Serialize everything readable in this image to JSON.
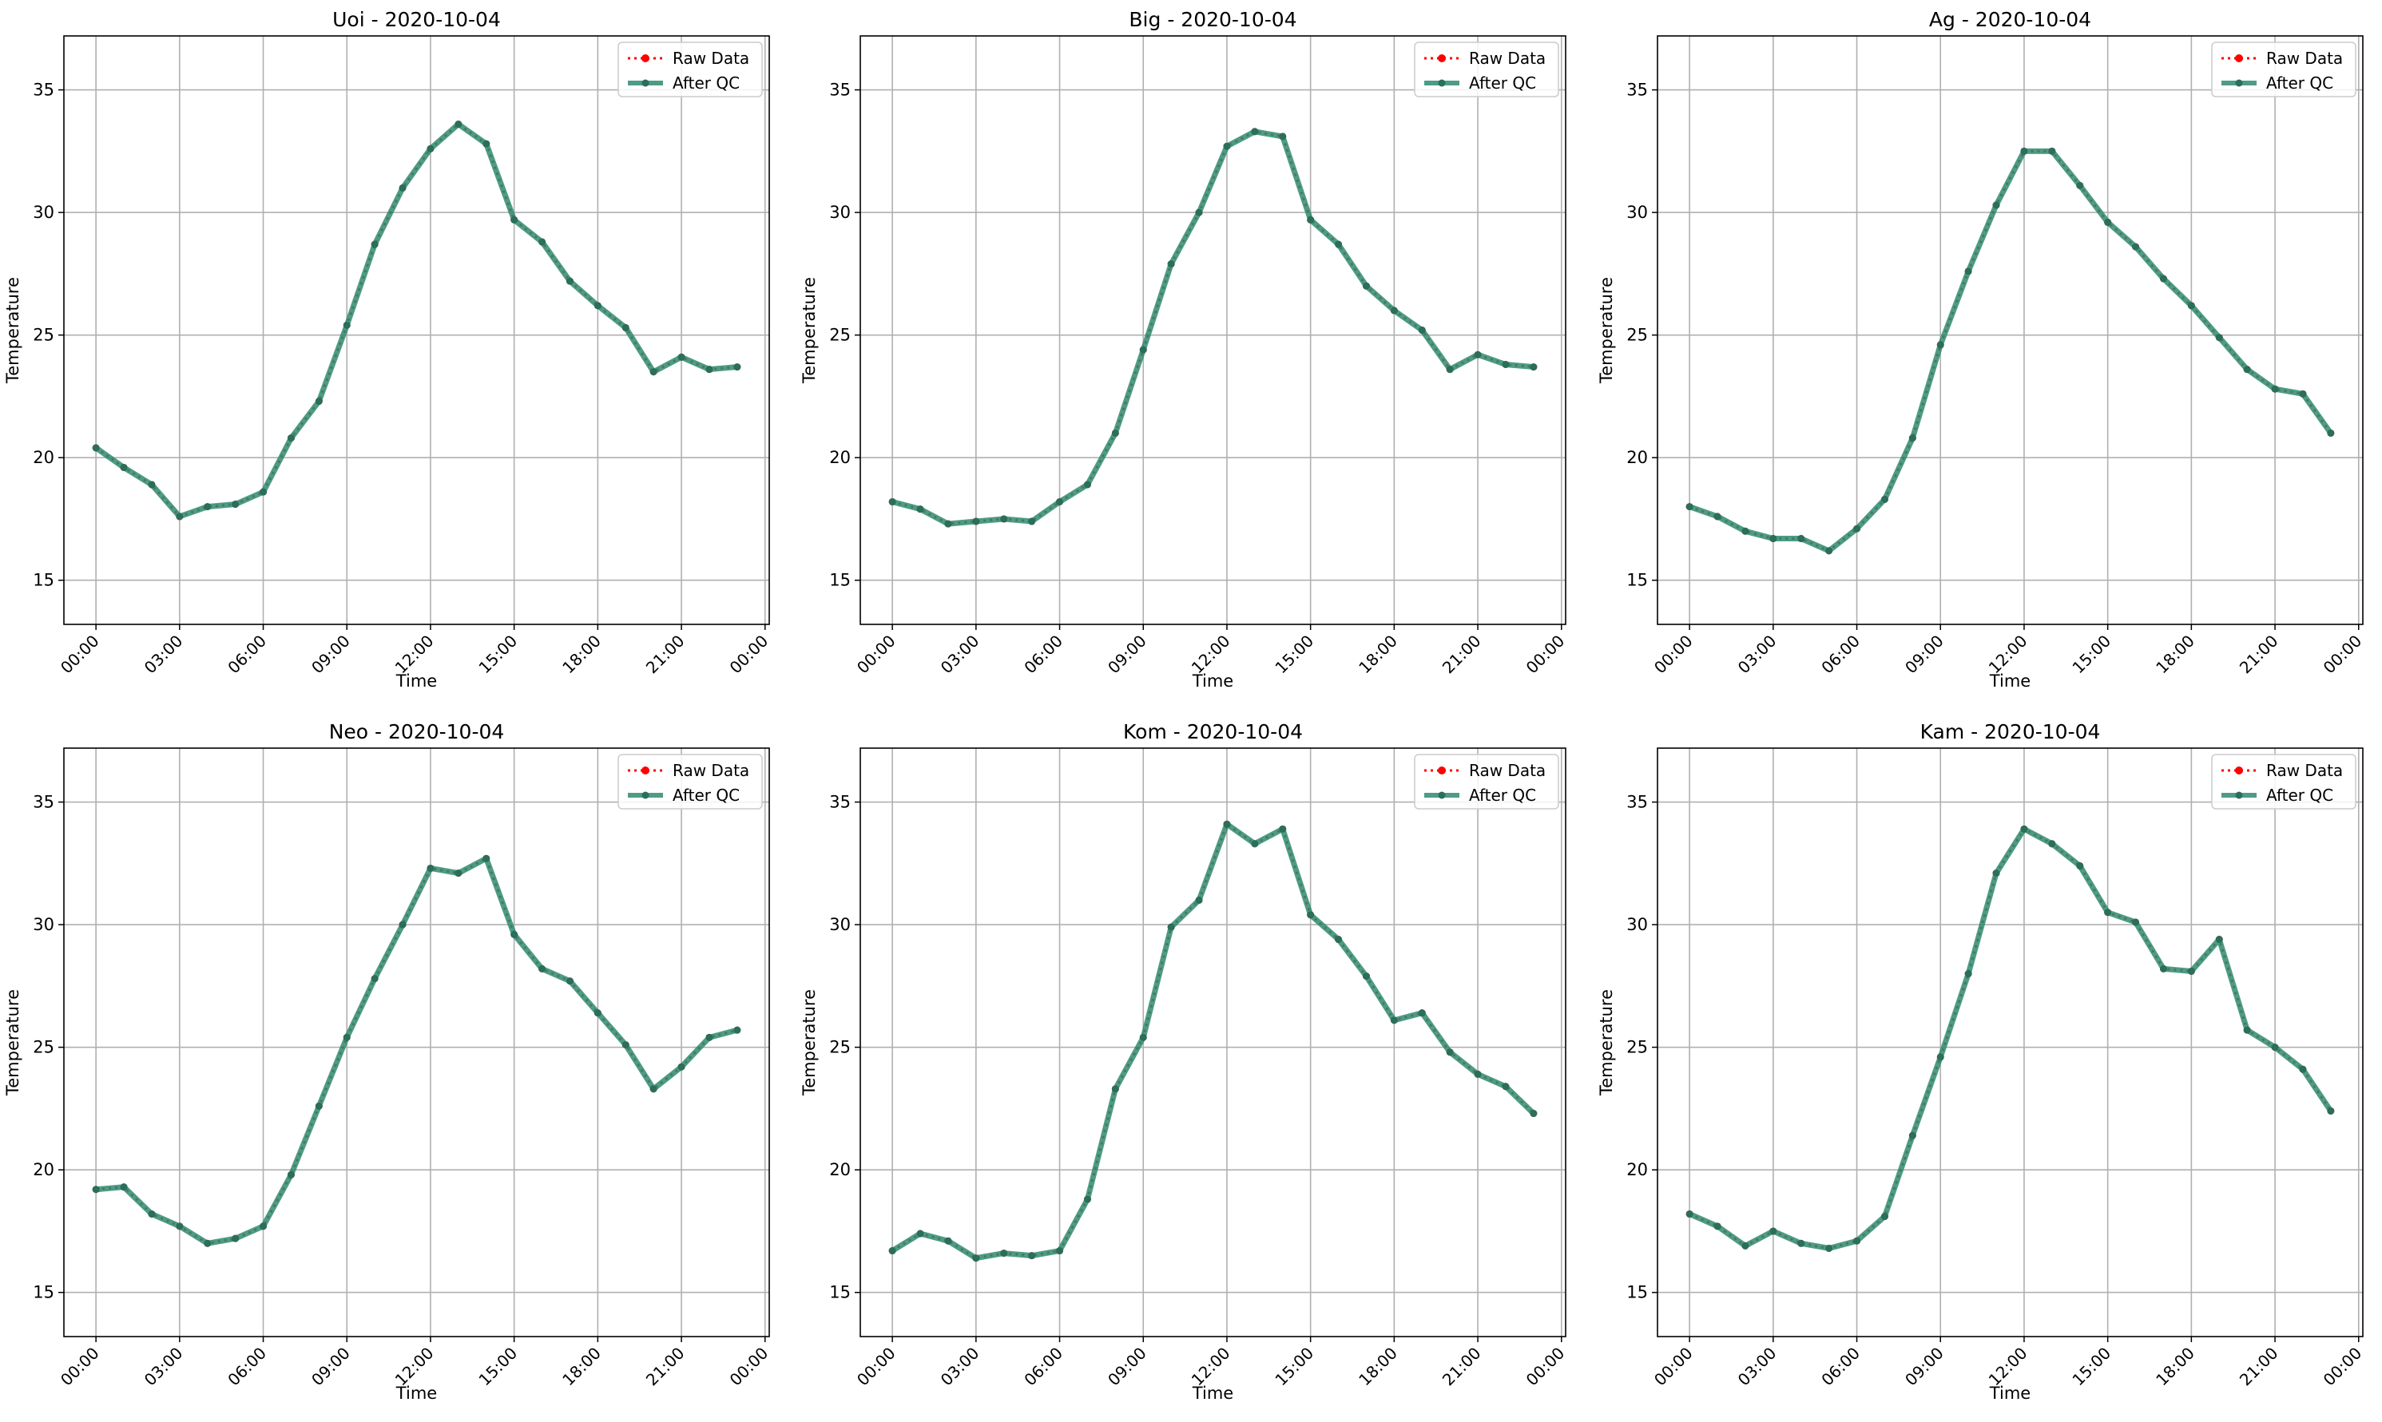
{
  "figure": {
    "legend": {
      "raw_label": "Raw Data",
      "qc_label": "After QC",
      "placement": "upper right"
    },
    "x_tick_labels": [
      "00:00",
      "03:00",
      "06:00",
      "09:00",
      "12:00",
      "15:00",
      "18:00",
      "21:00",
      "00:00"
    ],
    "y_tick_labels": [
      "15",
      "20",
      "25",
      "30",
      "35"
    ]
  },
  "colors": {
    "raw": "#ff0000",
    "qc": "#2e8b70",
    "grid": "#b0b0b0",
    "axis": "#000000"
  },
  "chart_data": [
    {
      "type": "line",
      "title": "Uoi - 2020-10-04",
      "xlabel": "Time",
      "ylabel": "Temperature",
      "ylim": [
        13.2,
        37.2
      ],
      "xlim_hours": [
        -1.15,
        24.15
      ],
      "grid": true,
      "x_hours": [
        0,
        1,
        2,
        3,
        4,
        5,
        6,
        7,
        8,
        9,
        10,
        11,
        12,
        13,
        14,
        15,
        16,
        17,
        18,
        19,
        20,
        21,
        22,
        23
      ],
      "series": [
        {
          "name": "Raw Data",
          "values": [
            20.4,
            19.6,
            18.9,
            17.6,
            18.0,
            18.1,
            18.6,
            20.8,
            22.3,
            25.4,
            28.7,
            31.0,
            32.6,
            33.6,
            32.8,
            29.7,
            28.8,
            27.2,
            26.2,
            25.3,
            23.5,
            24.1,
            23.6,
            23.7
          ]
        },
        {
          "name": "After QC",
          "values": [
            20.4,
            19.6,
            18.9,
            17.6,
            18.0,
            18.1,
            18.6,
            20.8,
            22.3,
            25.4,
            28.7,
            31.0,
            32.6,
            33.6,
            32.8,
            29.7,
            28.8,
            27.2,
            26.2,
            25.3,
            23.5,
            24.1,
            23.6,
            23.7
          ]
        }
      ]
    },
    {
      "type": "line",
      "title": "Big - 2020-10-04",
      "xlabel": "Time",
      "ylabel": "Temperature",
      "ylim": [
        13.2,
        37.2
      ],
      "xlim_hours": [
        -1.15,
        24.15
      ],
      "grid": true,
      "x_hours": [
        0,
        1,
        2,
        3,
        4,
        5,
        6,
        7,
        8,
        9,
        10,
        11,
        12,
        13,
        14,
        15,
        16,
        17,
        18,
        19,
        20,
        21,
        22,
        23
      ],
      "series": [
        {
          "name": "Raw Data",
          "values": [
            18.2,
            17.9,
            17.3,
            17.4,
            17.5,
            17.4,
            18.2,
            18.9,
            21.0,
            24.4,
            27.9,
            30.0,
            32.7,
            33.3,
            33.1,
            29.7,
            28.7,
            27.0,
            26.0,
            25.2,
            23.6,
            24.2,
            23.8,
            23.7
          ]
        },
        {
          "name": "After QC",
          "values": [
            18.2,
            17.9,
            17.3,
            17.4,
            17.5,
            17.4,
            18.2,
            18.9,
            21.0,
            24.4,
            27.9,
            30.0,
            32.7,
            33.3,
            33.1,
            29.7,
            28.7,
            27.0,
            26.0,
            25.2,
            23.6,
            24.2,
            23.8,
            23.7
          ]
        }
      ]
    },
    {
      "type": "line",
      "title": "Ag - 2020-10-04",
      "xlabel": "Time",
      "ylabel": "Temperature",
      "ylim": [
        13.2,
        37.2
      ],
      "xlim_hours": [
        -1.15,
        24.15
      ],
      "grid": true,
      "x_hours": [
        0,
        1,
        2,
        3,
        4,
        5,
        6,
        7,
        8,
        9,
        10,
        11,
        12,
        13,
        14,
        15,
        16,
        17,
        18,
        19,
        20,
        21,
        22,
        23
      ],
      "series": [
        {
          "name": "Raw Data",
          "values": [
            18.0,
            17.6,
            17.0,
            16.7,
            16.7,
            16.2,
            17.1,
            18.3,
            20.8,
            24.6,
            27.6,
            30.3,
            32.5,
            32.5,
            31.1,
            29.6,
            28.6,
            27.3,
            26.2,
            24.9,
            23.6,
            22.8,
            22.6,
            21.0
          ]
        },
        {
          "name": "After QC",
          "values": [
            18.0,
            17.6,
            17.0,
            16.7,
            16.7,
            16.2,
            17.1,
            18.3,
            20.8,
            24.6,
            27.6,
            30.3,
            32.5,
            32.5,
            31.1,
            29.6,
            28.6,
            27.3,
            26.2,
            24.9,
            23.6,
            22.8,
            22.6,
            21.0
          ]
        }
      ]
    },
    {
      "type": "line",
      "title": "Neo - 2020-10-04",
      "xlabel": "Time",
      "ylabel": "Temperature",
      "ylim": [
        13.2,
        37.2
      ],
      "xlim_hours": [
        -1.15,
        24.15
      ],
      "grid": true,
      "x_hours": [
        0,
        1,
        2,
        3,
        4,
        5,
        6,
        7,
        8,
        9,
        10,
        11,
        12,
        13,
        14,
        15,
        16,
        17,
        18,
        19,
        20,
        21,
        22,
        23
      ],
      "series": [
        {
          "name": "Raw Data",
          "values": [
            19.2,
            19.3,
            18.2,
            17.7,
            17.0,
            17.2,
            17.7,
            19.8,
            22.6,
            25.4,
            27.8,
            30.0,
            32.3,
            32.1,
            32.7,
            29.6,
            28.2,
            27.7,
            26.4,
            25.1,
            23.3,
            24.2,
            25.4,
            25.7
          ]
        },
        {
          "name": "After QC",
          "values": [
            19.2,
            19.3,
            18.2,
            17.7,
            17.0,
            17.2,
            17.7,
            19.8,
            22.6,
            25.4,
            27.8,
            30.0,
            32.3,
            32.1,
            32.7,
            29.6,
            28.2,
            27.7,
            26.4,
            25.1,
            23.3,
            24.2,
            25.4,
            25.7
          ]
        }
      ]
    },
    {
      "type": "line",
      "title": "Kom - 2020-10-04",
      "xlabel": "Time",
      "ylabel": "Temperature",
      "ylim": [
        13.2,
        37.2
      ],
      "xlim_hours": [
        -1.15,
        24.15
      ],
      "grid": true,
      "x_hours": [
        0,
        1,
        2,
        3,
        4,
        5,
        6,
        7,
        8,
        9,
        10,
        11,
        12,
        13,
        14,
        15,
        16,
        17,
        18,
        19,
        20,
        21,
        22,
        23
      ],
      "series": [
        {
          "name": "Raw Data",
          "values": [
            16.7,
            17.4,
            17.1,
            16.4,
            16.6,
            16.5,
            16.7,
            18.8,
            23.3,
            25.4,
            29.9,
            31.0,
            34.1,
            33.3,
            33.9,
            30.4,
            29.4,
            27.9,
            26.1,
            26.4,
            24.8,
            23.9,
            23.4,
            22.3
          ]
        },
        {
          "name": "After QC",
          "values": [
            16.7,
            17.4,
            17.1,
            16.4,
            16.6,
            16.5,
            16.7,
            18.8,
            23.3,
            25.4,
            29.9,
            31.0,
            34.1,
            33.3,
            33.9,
            30.4,
            29.4,
            27.9,
            26.1,
            26.4,
            24.8,
            23.9,
            23.4,
            22.3
          ]
        }
      ]
    },
    {
      "type": "line",
      "title": "Kam - 2020-10-04",
      "xlabel": "Time",
      "ylabel": "Temperature",
      "ylim": [
        13.2,
        37.2
      ],
      "xlim_hours": [
        -1.15,
        24.15
      ],
      "grid": true,
      "x_hours": [
        0,
        1,
        2,
        3,
        4,
        5,
        6,
        7,
        8,
        9,
        10,
        11,
        12,
        13,
        14,
        15,
        16,
        17,
        18,
        19,
        20,
        21,
        22,
        23
      ],
      "series": [
        {
          "name": "Raw Data",
          "values": [
            18.2,
            17.7,
            16.9,
            17.5,
            17.0,
            16.8,
            17.1,
            18.1,
            21.4,
            24.6,
            28.0,
            32.1,
            33.9,
            33.3,
            32.4,
            30.5,
            30.1,
            28.2,
            28.1,
            29.4,
            25.7,
            25.0,
            24.1,
            22.4
          ]
        },
        {
          "name": "After QC",
          "values": [
            18.2,
            17.7,
            16.9,
            17.5,
            17.0,
            16.8,
            17.1,
            18.1,
            21.4,
            24.6,
            28.0,
            32.1,
            33.9,
            33.3,
            32.4,
            30.5,
            30.1,
            28.2,
            28.1,
            29.4,
            25.7,
            25.0,
            24.1,
            22.4
          ]
        }
      ]
    }
  ]
}
